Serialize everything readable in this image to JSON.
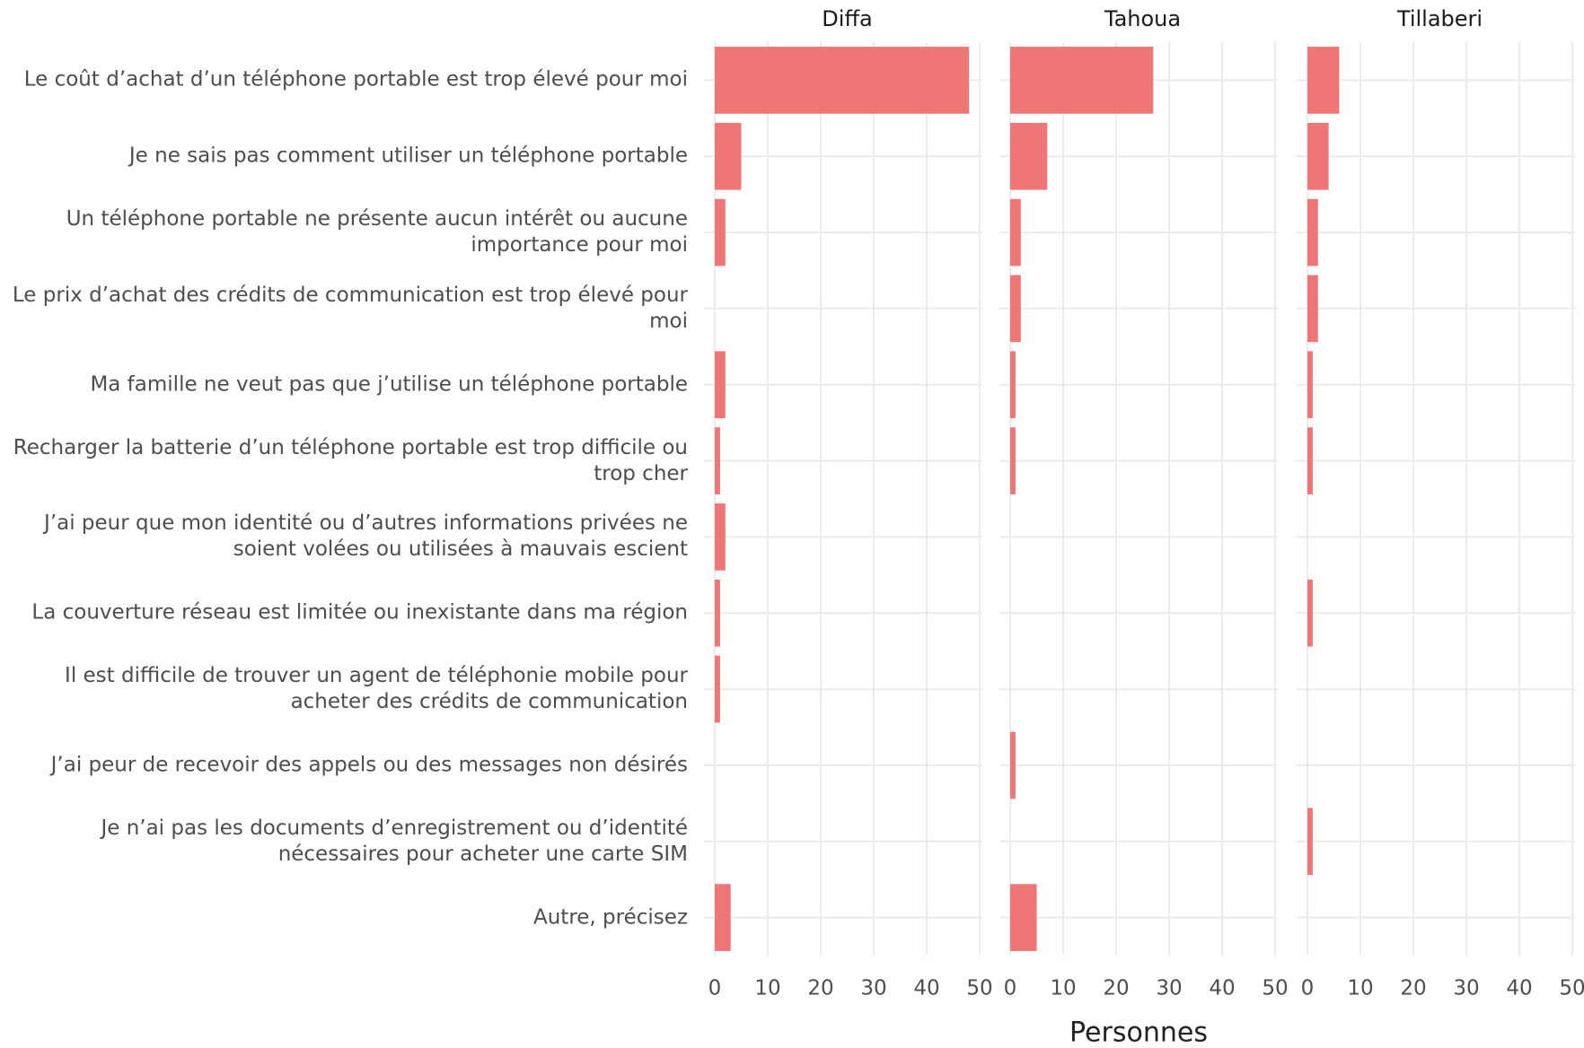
{
  "chart_data": {
    "type": "bar",
    "categories": [
      "Le coût d’achat d’un téléphone portable est trop élevé pour moi",
      "Je ne sais pas comment utiliser un téléphone portable",
      "Un téléphone portable ne présente aucun intérêt ou aucune importance pour moi",
      "Le prix d’achat des crédits de communication est trop élevé pour moi",
      "Ma famille ne veut pas que j’utilise un téléphone portable",
      "Recharger la batterie d’un téléphone portable est trop difficile ou trop cher",
      "J’ai peur que mon identité ou d’autres informations privées ne soient volées ou utilisées à mauvais escient",
      "La couverture réseau est limitée ou inexistante dans ma région",
      "Il est difficile de trouver un agent de téléphonie mobile pour acheter des crédits de communication",
      "J’ai peur de recevoir des appels ou des messages non désirés",
      "Je n’ai pas les documents d’enregistrement ou d’identité nécessaires pour acheter une carte SIM",
      "Autre, précisez"
    ],
    "series": [
      {
        "name": "Diffa",
        "color": "#ee7676",
        "values": [
          48,
          5,
          2,
          0,
          2,
          1,
          2,
          1,
          1,
          0,
          0,
          3
        ]
      },
      {
        "name": "Tahoua",
        "color": "#ee7676",
        "values": [
          27,
          7,
          2,
          2,
          1,
          1,
          0,
          0,
          0,
          1,
          0,
          5
        ]
      },
      {
        "name": "Tillaberi",
        "color": "#ee7676",
        "values": [
          6,
          4,
          2,
          2,
          1,
          1,
          0,
          1,
          0,
          0,
          1,
          0
        ]
      }
    ],
    "xlabel": "Personnes",
    "xlim": [
      0,
      50
    ],
    "xticks": [
      0,
      10,
      20,
      30,
      40,
      50
    ],
    "grid": true
  }
}
